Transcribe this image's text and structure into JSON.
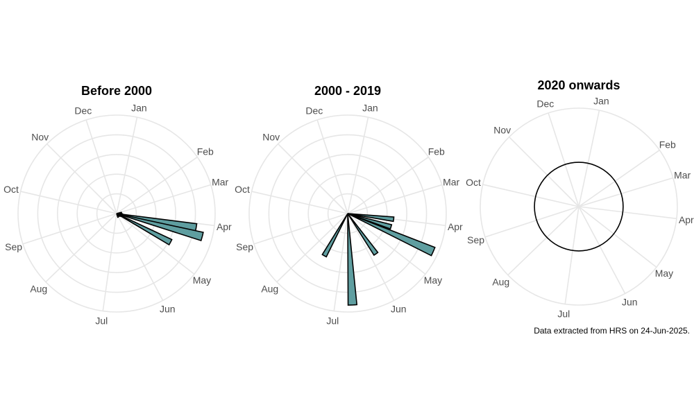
{
  "caption": "Data extracted from HRS on 24-Jun-2025.",
  "colors": {
    "bar_fill": "#5f9ea0",
    "bar_stroke": "#000000",
    "grid": "#e6e6e6",
    "label": "#4d4d4d"
  },
  "chart_data": [
    {
      "type": "polar_bar",
      "title": "Before 2000",
      "grid": true,
      "categories": [
        "Jan",
        "Feb",
        "Mar",
        "Apr",
        "May",
        "Jun",
        "Jul",
        "Aug",
        "Sep",
        "Oct",
        "Nov",
        "Dec"
      ],
      "bars": [
        {
          "angle_deg": 100,
          "value": 0.82
        },
        {
          "angle_deg": 105,
          "value": 0.9
        },
        {
          "angle_deg": 118,
          "value": 0.62
        },
        {
          "angle_deg": 78,
          "value": 0.05
        },
        {
          "angle_deg": 88,
          "value": 0.05
        },
        {
          "angle_deg": 95,
          "value": 0.06
        },
        {
          "angle_deg": 112,
          "value": 0.06
        },
        {
          "angle_deg": 122,
          "value": 0.05
        },
        {
          "angle_deg": 135,
          "value": 0.04
        },
        {
          "angle_deg": 160,
          "value": 0.04
        }
      ]
    },
    {
      "type": "polar_bar",
      "title": "2000 - 2019",
      "grid": true,
      "categories": [
        "Jan",
        "Feb",
        "Mar",
        "Apr",
        "May",
        "Jun",
        "Jul",
        "Aug",
        "Sep",
        "Oct",
        "Nov",
        "Dec"
      ],
      "bars": [
        {
          "angle_deg": 97,
          "value": 0.47
        },
        {
          "angle_deg": 107,
          "value": 0.46
        },
        {
          "angle_deg": 114,
          "value": 0.95
        },
        {
          "angle_deg": 145,
          "value": 0.5
        },
        {
          "angle_deg": 177,
          "value": 0.93
        },
        {
          "angle_deg": 209,
          "value": 0.49
        }
      ]
    },
    {
      "type": "polar_bar",
      "title": "2020 onwards",
      "grid": false,
      "categories": [
        "Jan",
        "Feb",
        "Mar",
        "Apr",
        "May",
        "Jun",
        "Jul",
        "Aug",
        "Sep",
        "Oct",
        "Nov",
        "Dec"
      ],
      "bars": [],
      "circle_value": 0.45
    }
  ]
}
